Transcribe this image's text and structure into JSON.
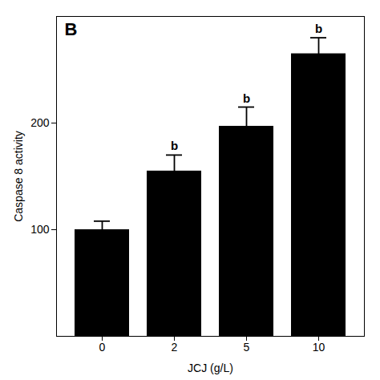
{
  "chart_data": {
    "type": "bar",
    "categories": [
      "0",
      "2",
      "5",
      "10"
    ],
    "values": [
      100,
      155,
      197,
      265
    ],
    "errors": [
      8,
      15,
      18,
      15
    ],
    "significance_labels": [
      null,
      "b",
      "b",
      "b"
    ],
    "color": "#000000",
    "ylabel": "Caspase 8 activity",
    "xlabel": "JCJ (g/L)",
    "annotations": [
      "B"
    ],
    "ylim": [
      0,
      300
    ],
    "yticks": [
      100,
      200
    ],
    "grid": false
  }
}
